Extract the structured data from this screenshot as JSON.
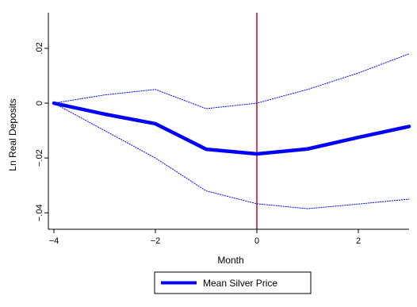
{
  "chart_data": {
    "type": "line",
    "title": "",
    "xlabel": "Month",
    "ylabel": "Ln Real Deposits",
    "xlim": [
      -4,
      3
    ],
    "ylim": [
      -0.046,
      0.033
    ],
    "xticks": [
      -4,
      -2,
      0,
      2
    ],
    "xtick_labels": [
      "−4",
      "−2",
      "0",
      "2"
    ],
    "yticks": [
      -0.04,
      -0.02,
      0,
      0.02
    ],
    "ytick_labels": [
      "−.04",
      "−.02",
      "0",
      ".02"
    ],
    "grid": false,
    "legend_position": "bottom",
    "vline_x": 0,
    "series": [
      {
        "name": "Mean Silver Price",
        "role": "estimate",
        "color": "#0000ff",
        "style": "solid-thick",
        "x": [
          -4,
          -3,
          -2,
          -1,
          0,
          1,
          2,
          3
        ],
        "y": [
          0.0,
          -0.004,
          -0.0075,
          -0.0168,
          -0.0185,
          -0.0167,
          -0.0125,
          -0.0085
        ]
      },
      {
        "name": "",
        "role": "upper-ci",
        "color": "#0000ff",
        "style": "dotted",
        "x": [
          -4,
          -3,
          -2,
          -1,
          0,
          1,
          2,
          3
        ],
        "y": [
          0.0,
          0.003,
          0.005,
          -0.002,
          0.0,
          0.005,
          0.011,
          0.018
        ]
      },
      {
        "name": "",
        "role": "lower-ci",
        "color": "#0000ff",
        "style": "dotted",
        "x": [
          -4,
          -3,
          -2,
          -1,
          0,
          1,
          2,
          3
        ],
        "y": [
          0.0,
          -0.01,
          -0.02,
          -0.032,
          -0.0367,
          -0.0385,
          -0.0368,
          -0.035
        ]
      }
    ]
  },
  "colors": {
    "estimate": "#0000ff",
    "ci": "#0000ff",
    "vline": "#cc0033",
    "axis": "#000000"
  }
}
